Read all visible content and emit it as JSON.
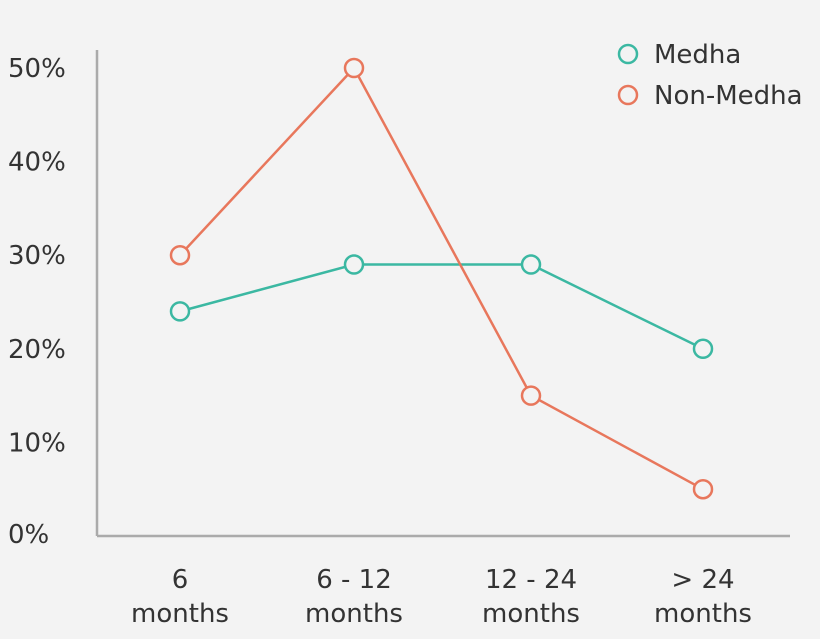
{
  "chart_data": {
    "type": "line",
    "categories": [
      [
        "6",
        "months"
      ],
      [
        "6 - 12",
        "months"
      ],
      [
        "12 - 24",
        "months"
      ],
      [
        "> 24",
        "months"
      ]
    ],
    "y_ticks": [
      "0%",
      "10%",
      "20%",
      "30%",
      "40%",
      "50%"
    ],
    "ylim": [
      0,
      50
    ],
    "series": [
      {
        "name": "Medha",
        "values": [
          24,
          29,
          29,
          20
        ],
        "color": "#3bb8a2"
      },
      {
        "name": "Non-Medha",
        "values": [
          30,
          50,
          15,
          5
        ],
        "color": "#e8775c"
      }
    ],
    "legend_position": "top-right",
    "grid": false,
    "axis_color": "#aaaaaa"
  }
}
